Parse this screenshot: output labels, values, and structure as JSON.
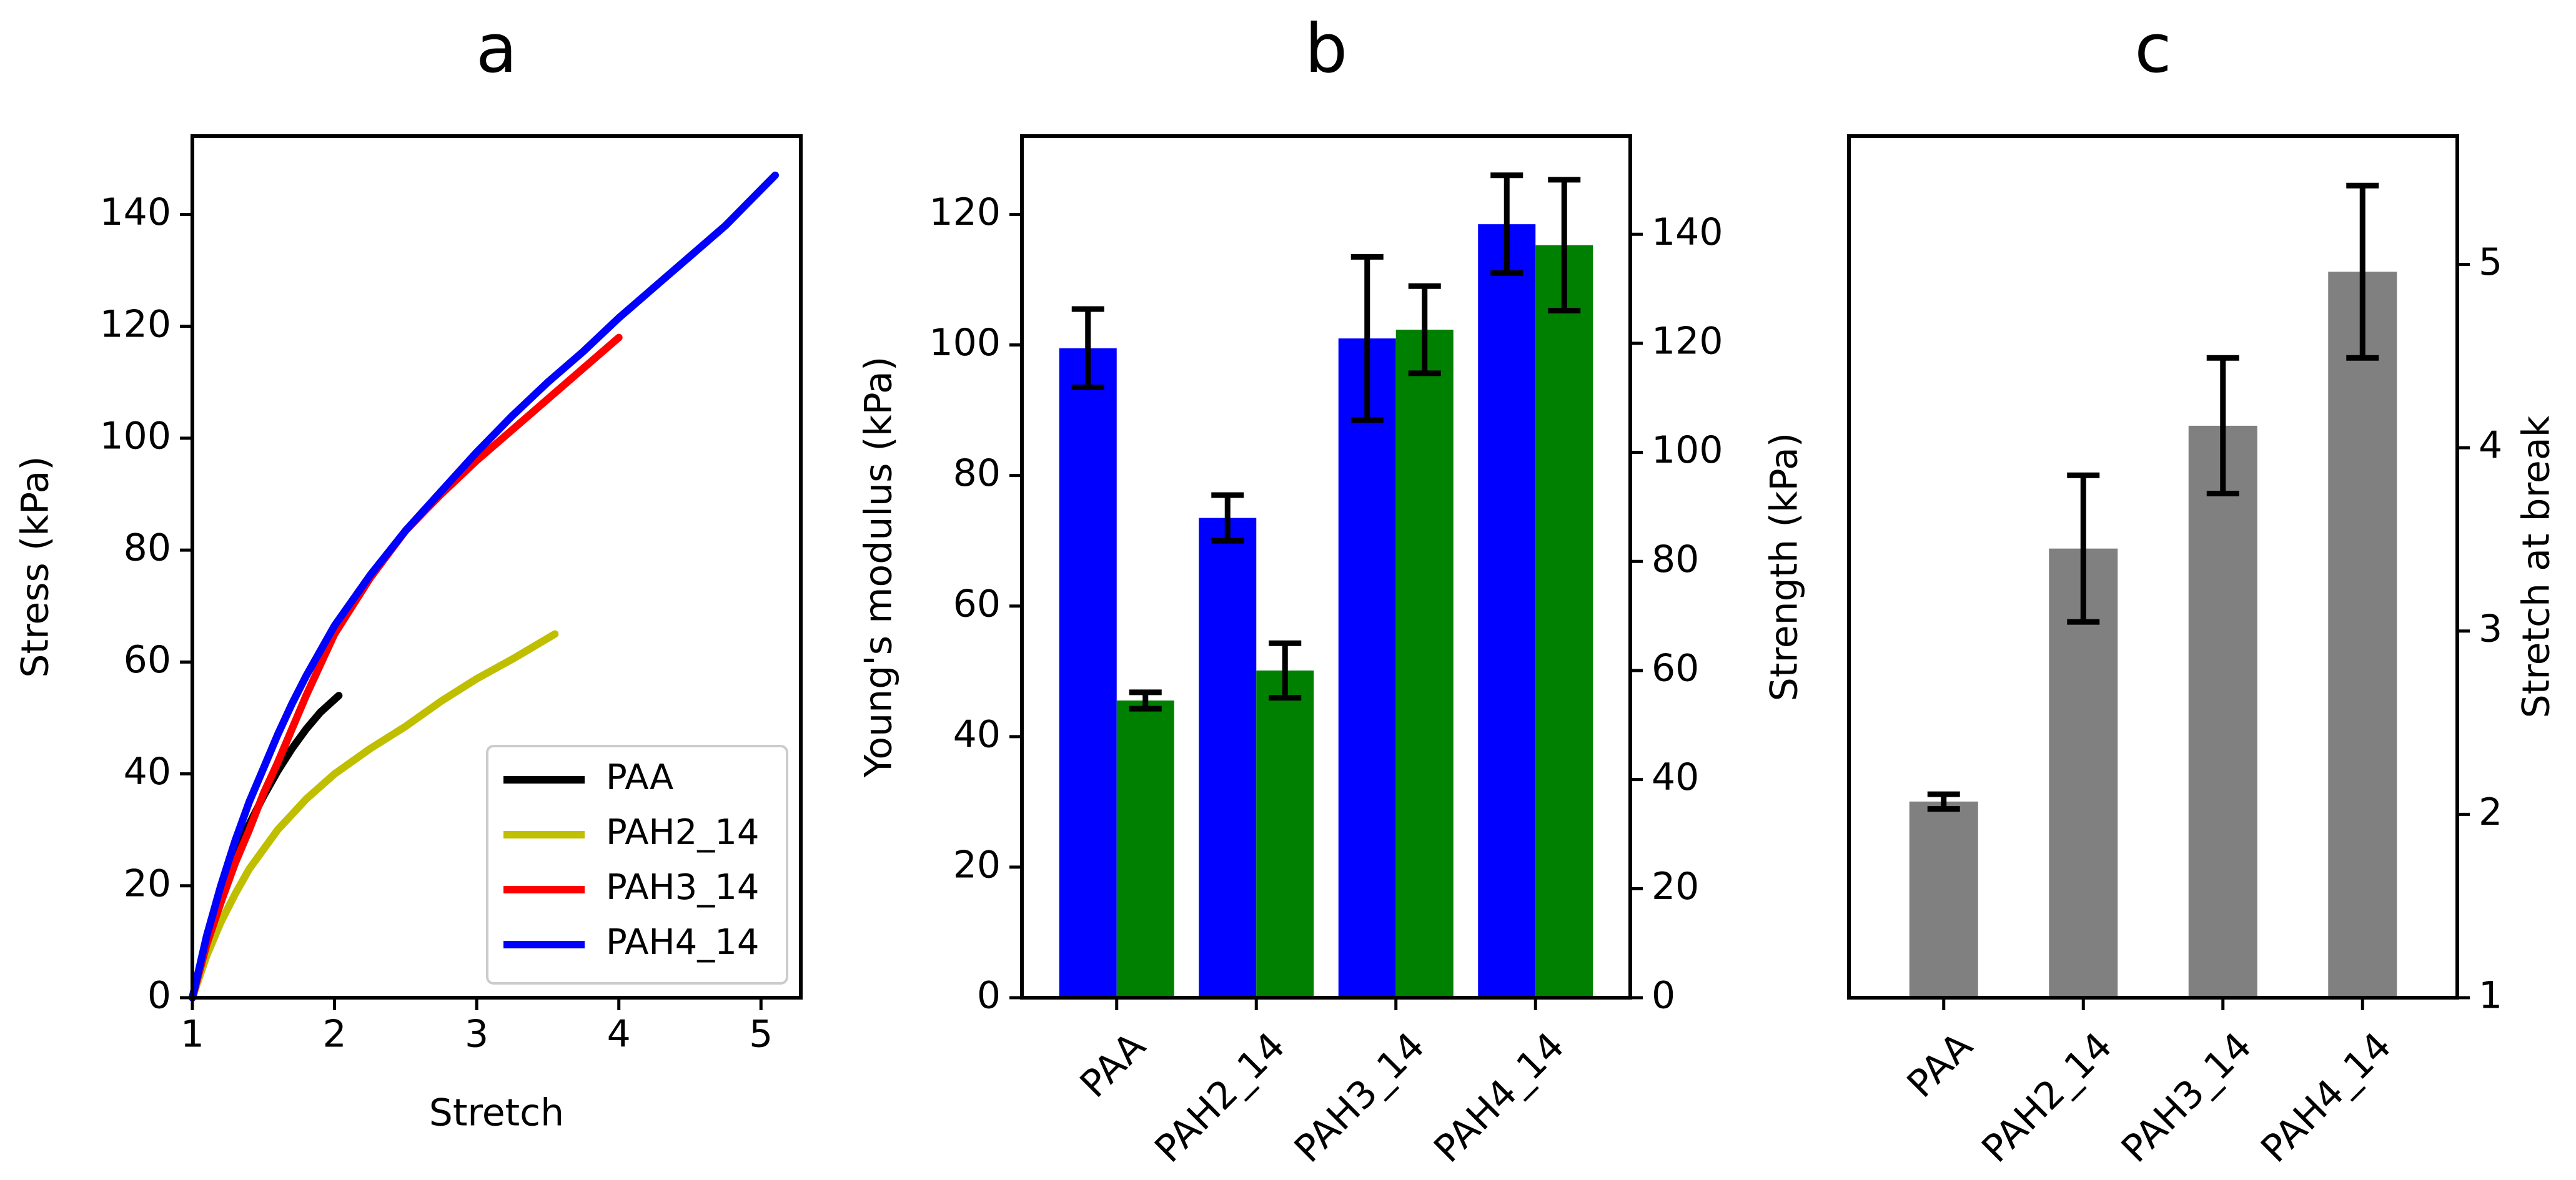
{
  "chart_data": [
    {
      "panel_label": "a",
      "type": "line",
      "xlabel": "Stretch",
      "ylabel": "Stress (kPa)",
      "xlim": [
        1.0,
        5.28
      ],
      "ylim": [
        0,
        154
      ],
      "xticks": [
        1,
        2,
        3,
        4,
        5
      ],
      "yticks": [
        0,
        20,
        40,
        60,
        80,
        100,
        120,
        140
      ],
      "legend": {
        "position": "lower-right",
        "entries": [
          "PAA",
          "PAH2_14",
          "PAH3_14",
          "PAH4_14"
        ]
      },
      "series": [
        {
          "name": "PAA",
          "color": "#000000",
          "points": [
            [
              1.0,
              0
            ],
            [
              1.1,
              10
            ],
            [
              1.2,
              18.5
            ],
            [
              1.3,
              25.5
            ],
            [
              1.4,
              31
            ],
            [
              1.5,
              36
            ],
            [
              1.6,
              40.5
            ],
            [
              1.7,
              44.5
            ],
            [
              1.8,
              48
            ],
            [
              1.9,
              51
            ],
            [
              2.03,
              54
            ]
          ]
        },
        {
          "name": "PAH2_14",
          "color": "#bfbf00",
          "points": [
            [
              1.0,
              0
            ],
            [
              1.1,
              7.5
            ],
            [
              1.2,
              13.5
            ],
            [
              1.3,
              18.5
            ],
            [
              1.4,
              23
            ],
            [
              1.6,
              30
            ],
            [
              1.8,
              35.5
            ],
            [
              2.0,
              40
            ],
            [
              2.25,
              44.5
            ],
            [
              2.5,
              48.5
            ],
            [
              2.75,
              53
            ],
            [
              3.0,
              57
            ],
            [
              3.25,
              60.5
            ],
            [
              3.55,
              65
            ]
          ]
        },
        {
          "name": "PAH3_14",
          "color": "#ff0000",
          "points": [
            [
              1.0,
              0
            ],
            [
              1.1,
              9.5
            ],
            [
              1.2,
              17
            ],
            [
              1.3,
              24
            ],
            [
              1.4,
              30
            ],
            [
              1.5,
              36.5
            ],
            [
              1.6,
              42
            ],
            [
              1.7,
              48
            ],
            [
              1.8,
              54
            ],
            [
              1.9,
              59.5
            ],
            [
              2.0,
              65
            ],
            [
              2.25,
              75
            ],
            [
              2.5,
              83.5
            ],
            [
              2.75,
              90
            ],
            [
              3.0,
              96
            ],
            [
              3.25,
              101.5
            ],
            [
              3.5,
              107
            ],
            [
              3.75,
              112.5
            ],
            [
              4.0,
              118
            ]
          ]
        },
        {
          "name": "PAH4_14",
          "color": "#0000ff",
          "points": [
            [
              1.0,
              0
            ],
            [
              1.1,
              11
            ],
            [
              1.2,
              20
            ],
            [
              1.3,
              28
            ],
            [
              1.4,
              35
            ],
            [
              1.5,
              41
            ],
            [
              1.6,
              47
            ],
            [
              1.7,
              52.5
            ],
            [
              1.8,
              57.5
            ],
            [
              1.9,
              62
            ],
            [
              2.0,
              66.5
            ],
            [
              2.25,
              75.5
            ],
            [
              2.5,
              83.5
            ],
            [
              2.75,
              90.5
            ],
            [
              3.0,
              97.5
            ],
            [
              3.25,
              104
            ],
            [
              3.5,
              110
            ],
            [
              3.75,
              115.5
            ],
            [
              4.0,
              121.5
            ],
            [
              4.25,
              127
            ],
            [
              4.5,
              132.5
            ],
            [
              4.75,
              138
            ],
            [
              5.1,
              147
            ]
          ]
        }
      ]
    },
    {
      "panel_label": "b",
      "type": "bar",
      "categories": [
        "PAA",
        "PAH2_14",
        "PAH3_14",
        "PAH4_14"
      ],
      "ylabel_left": "Young's modulus (kPa)",
      "ylabel_right": "Strength (kPa)",
      "ylim_left": [
        0,
        132
      ],
      "ylim_right": [
        0,
        158
      ],
      "yticks_left": [
        0,
        20,
        40,
        60,
        80,
        100,
        120
      ],
      "yticks_right": [
        0,
        20,
        40,
        60,
        80,
        100,
        120,
        140
      ],
      "series": [
        {
          "name": "Young's modulus",
          "axis": "left",
          "color": "#0000ff",
          "values": [
            99.5,
            73.5,
            101,
            118.5
          ],
          "errors": [
            6,
            3.5,
            12.5,
            7.5
          ]
        },
        {
          "name": "Strength",
          "axis": "right",
          "color": "#008000",
          "values": [
            54.5,
            60,
            122.5,
            138
          ],
          "errors": [
            1.5,
            5,
            8,
            12
          ]
        }
      ]
    },
    {
      "panel_label": "c",
      "type": "bar",
      "categories": [
        "PAA",
        "PAH2_14",
        "PAH3_14",
        "PAH4_14"
      ],
      "ylabel_right": "Stretch at break",
      "ylim": [
        1,
        5.7
      ],
      "yticks": [
        1,
        2,
        3,
        4,
        5
      ],
      "series": [
        {
          "name": "Stretch at break",
          "color": "#808080",
          "values": [
            2.07,
            3.45,
            4.12,
            4.96
          ],
          "errors": [
            0.04,
            0.4,
            0.37,
            0.47
          ]
        }
      ]
    }
  ]
}
